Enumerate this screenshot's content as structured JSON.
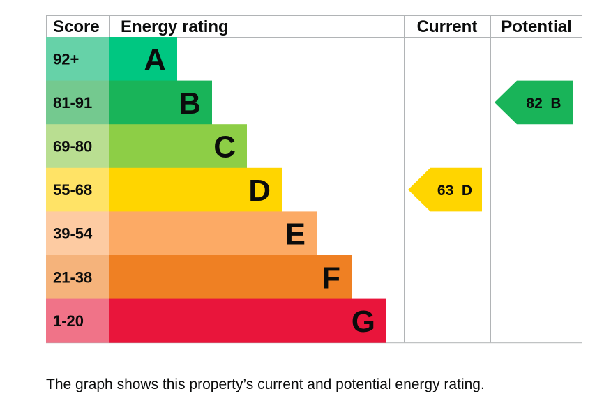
{
  "chart_data": {
    "type": "table",
    "headers": {
      "score": "Score",
      "rating": "Energy rating",
      "current": "Current",
      "potential": "Potential"
    },
    "bands": [
      {
        "letter": "A",
        "score": "92+",
        "color": "#00c781",
        "score_bg": "#66d2a8"
      },
      {
        "letter": "B",
        "score": "81-91",
        "color": "#19b459",
        "score_bg": "#74c98f"
      },
      {
        "letter": "C",
        "score": "69-80",
        "color": "#8dce46",
        "score_bg": "#b9de91"
      },
      {
        "letter": "D",
        "score": "55-68",
        "color": "#ffd500",
        "score_bg": "#ffe366"
      },
      {
        "letter": "E",
        "score": "39-54",
        "color": "#fcaa65",
        "score_bg": "#fdcba2"
      },
      {
        "letter": "F",
        "score": "21-38",
        "color": "#ef8023",
        "score_bg": "#f5b37b"
      },
      {
        "letter": "G",
        "score": "1-20",
        "color": "#e9153b",
        "score_bg": "#f07388"
      }
    ],
    "current": {
      "value": 63,
      "band": "D",
      "label": "63  D",
      "color": "#ffd500"
    },
    "potential": {
      "value": 82,
      "band": "B",
      "label": "82  B",
      "color": "#19b459"
    }
  },
  "caption": "The graph shows this property’s current and potential energy rating."
}
